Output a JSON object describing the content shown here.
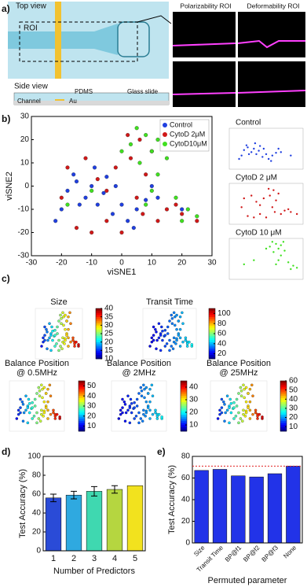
{
  "figure": {
    "panel_labels": [
      "a)",
      "b)",
      "c)",
      "d)",
      "e)"
    ]
  },
  "diagram": {
    "top_view": "Top view",
    "roi": "ROI",
    "side_view": "Side view",
    "pdms": "PDMS",
    "au": "Au",
    "channel": "Channel",
    "glass": "Glass slide",
    "polarizability_roi": "Polarizability ROI",
    "deformability_roi": "Deformability ROI"
  },
  "chart_data": [
    {
      "type": "scatter",
      "xlabel": "viSNE1",
      "ylabel": "viSNE2",
      "xlim": [
        -30,
        30
      ],
      "ylim": [
        -30,
        30
      ],
      "xticks": [
        -30,
        -20,
        -10,
        0,
        10,
        20,
        30
      ],
      "yticks": [
        -30,
        -20,
        -10,
        0,
        10,
        20,
        30
      ],
      "legend": "upper right",
      "small_multiples": [
        "Control",
        "CytoD 2 μM",
        "CytoD 10 μM"
      ],
      "series": [
        {
          "name": "Control",
          "color": "#1f3fe0",
          "x": [
            -18,
            -15,
            -12,
            -10,
            -8,
            -6,
            -20,
            -5,
            -3,
            0,
            2,
            5,
            -14,
            -22,
            8,
            10,
            12,
            -2,
            -16,
            4,
            20,
            -9
          ],
          "y": [
            -2,
            2,
            -5,
            0,
            -8,
            -3,
            -10,
            4,
            -12,
            -8,
            -15,
            -10,
            -8,
            -15,
            -6,
            0,
            -5,
            0,
            5,
            -18,
            -10,
            8
          ]
        },
        {
          "name": "CytoD 2μM",
          "color": "#d01818",
          "x": [
            -20,
            -15,
            -10,
            -5,
            0,
            5,
            8,
            10,
            6,
            3,
            -2,
            -8,
            15,
            20,
            25,
            -18,
            -12,
            12,
            18,
            -5,
            7,
            2
          ],
          "y": [
            -5,
            -18,
            -20,
            -15,
            -20,
            -5,
            5,
            15,
            20,
            12,
            8,
            3,
            -10,
            -12,
            -15,
            8,
            12,
            -15,
            -8,
            -2,
            -12,
            22
          ]
        },
        {
          "name": "CytoD10μM",
          "color": "#40e020",
          "x": [
            5,
            8,
            12,
            10,
            15,
            6,
            3,
            12,
            18,
            22,
            25,
            10,
            14,
            0,
            8,
            -10,
            -18,
            20
          ],
          "y": [
            25,
            22,
            20,
            15,
            12,
            10,
            18,
            5,
            -5,
            -10,
            -13,
            -2,
            25,
            15,
            -8,
            -2,
            -8,
            -15
          ]
        }
      ]
    },
    {
      "type": "colormap-scatter",
      "title": "Size",
      "colormap": "jet",
      "clim": [
        10,
        40
      ],
      "cticks": [
        10,
        15,
        20,
        25,
        30,
        35,
        40
      ]
    },
    {
      "type": "colormap-scatter",
      "title": "Transit Time",
      "colormap": "jet",
      "clim": [
        10,
        110
      ],
      "cticks": [
        20,
        40,
        60,
        80,
        100
      ]
    },
    {
      "type": "colormap-scatter",
      "title": "Balance Position",
      "subtitle": "@ 0.5MHz",
      "colormap": "jet",
      "clim": [
        5,
        55
      ],
      "cticks": [
        10,
        20,
        30,
        40,
        50
      ]
    },
    {
      "type": "colormap-scatter",
      "title": "Balance Position",
      "subtitle": "@ 2MHz",
      "colormap": "jet",
      "clim": [
        5,
        45
      ],
      "cticks": [
        10,
        20,
        30,
        40
      ]
    },
    {
      "type": "colormap-scatter",
      "title": "Balance Position",
      "subtitle": "@ 25MHz",
      "colormap": "jet",
      "clim": [
        5,
        60
      ],
      "cticks": [
        10,
        20,
        30,
        40,
        50,
        60
      ]
    },
    {
      "type": "bar",
      "xlabel": "Number of Predictors",
      "ylabel": "Test Accuracy (%)",
      "categories": [
        "1",
        "2",
        "3",
        "4",
        "5"
      ],
      "values": [
        56,
        59,
        63,
        65,
        69
      ],
      "errors": [
        4,
        4,
        5,
        4,
        0
      ],
      "colors": [
        "#2a4bd7",
        "#2fa9e0",
        "#3fd8b0",
        "#b5d640",
        "#f2e21e"
      ],
      "ylim": [
        0,
        100
      ],
      "yticks": [
        0,
        20,
        40,
        60,
        80,
        100
      ]
    },
    {
      "type": "bar",
      "xlabel": "Permuted parameter",
      "ylabel": "Test Accuracy (%)",
      "categories": [
        "Size",
        "Transit Time",
        "BP@f1",
        "BP@f2",
        "BP@f3",
        "None"
      ],
      "values": [
        67,
        68,
        62,
        61,
        64,
        71
      ],
      "color": "#2233e8",
      "rotated_labels": true,
      "reference_line": 71,
      "reference_color": "#e02020",
      "ylim": [
        0,
        80
      ],
      "yticks": [
        0,
        20,
        40,
        60,
        80
      ]
    }
  ]
}
